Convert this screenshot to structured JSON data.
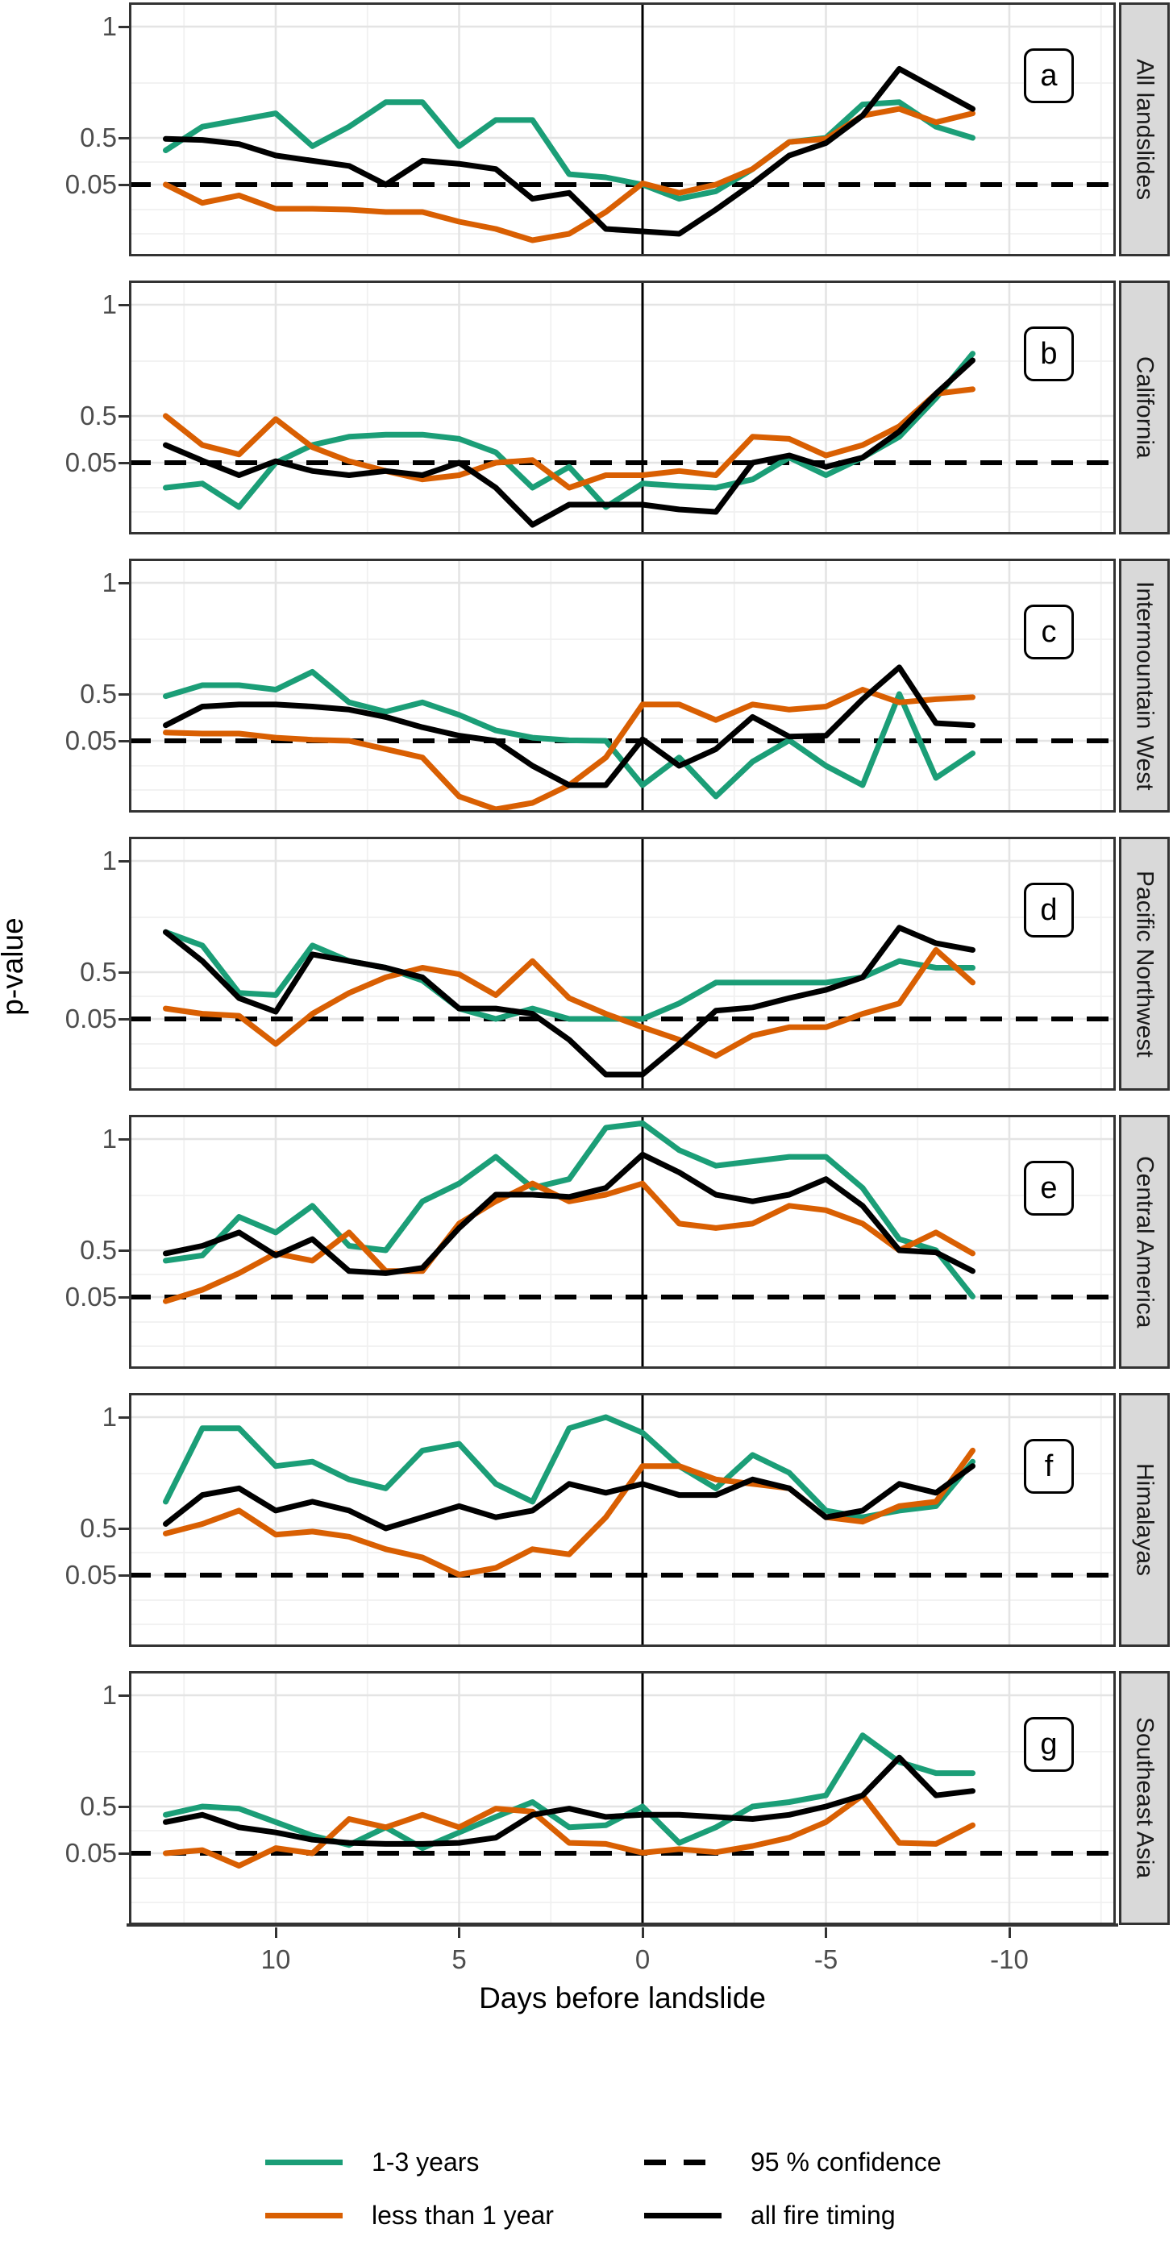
{
  "figure": {
    "ylabel": "p-value",
    "xlabel": "Days before landslide",
    "legend": [
      {
        "label": "1-3 years",
        "color": "#1b9e77",
        "dash": false
      },
      {
        "label": "less than 1 year",
        "color": "#d95f02",
        "dash": false
      },
      {
        "label": "95 % confidence",
        "color": "#000000",
        "dash": true
      },
      {
        "label": "all fire timing",
        "color": "#000000",
        "dash": false
      }
    ]
  },
  "chart_data": {
    "type": "line",
    "title": "",
    "xlabel": "Days before landslide",
    "ylabel": "p-value",
    "legend_position": "bottom",
    "grid": true,
    "x_axis_breaks": [
      10,
      5,
      0,
      -5,
      -10
    ],
    "x_tick_labels": [
      "10",
      "5",
      "0",
      "-5",
      "-10"
    ],
    "y_axis_breaks": [
      1,
      0.5,
      0.05
    ],
    "y_tick_labels": [
      "1",
      "0.5",
      "0.05"
    ],
    "confidence_level_line": 0.05,
    "event_line_x": 0,
    "x": [
      13,
      12,
      11,
      10,
      9,
      8,
      7,
      6,
      5,
      4,
      3,
      2,
      1,
      0,
      -1,
      -2,
      -3,
      -4,
      -5,
      -6,
      -7,
      -8,
      -9
    ],
    "series_colors": {
      "1-3 years": "#1b9e77",
      "less than 1 year": "#d95f02",
      "all fire timing": "#000000",
      "95 % confidence": "#000000"
    },
    "panels": [
      {
        "letter": "a",
        "region": "All landslides",
        "series": {
          "1-3 years": [
            0.38,
            0.55,
            0.58,
            0.61,
            0.42,
            0.55,
            0.66,
            0.66,
            0.42,
            0.58,
            0.58,
            0.15,
            0.12,
            0.05,
            0.033,
            0.042,
            0.2,
            0.46,
            0.5,
            0.65,
            0.66,
            0.55,
            0.5
          ],
          "less than 1 year": [
            0.05,
            0.028,
            0.037,
            0.021,
            0.021,
            0.02,
            0.019,
            0.019,
            0.015,
            0.012,
            0.008,
            0.01,
            0.019,
            0.062,
            0.04,
            0.05,
            0.2,
            0.46,
            0.49,
            0.6,
            0.63,
            0.57,
            0.61
          ],
          "all fire timing": [
            0.49,
            0.48,
            0.44,
            0.33,
            0.28,
            0.23,
            0.05,
            0.28,
            0.25,
            0.2,
            0.033,
            0.04,
            0.012,
            0.011,
            0.01,
            0.02,
            0.06,
            0.33,
            0.45,
            0.6,
            0.81,
            0.72,
            0.63
          ]
        }
      },
      {
        "letter": "b",
        "region": "California",
        "series": {
          "1-3 years": [
            0.02,
            0.025,
            0.012,
            0.05,
            0.22,
            0.3,
            0.32,
            0.32,
            0.28,
            0.15,
            0.02,
            0.045,
            0.012,
            0.025,
            0.022,
            0.02,
            0.03,
            0.1,
            0.035,
            0.1,
            0.3,
            0.58,
            0.78
          ],
          "less than 1 year": [
            0.5,
            0.22,
            0.13,
            0.47,
            0.2,
            0.065,
            0.04,
            0.03,
            0.035,
            0.05,
            0.075,
            0.02,
            0.035,
            0.035,
            0.04,
            0.035,
            0.3,
            0.28,
            0.12,
            0.22,
            0.4,
            0.6,
            0.62
          ],
          "all fire timing": [
            0.22,
            0.07,
            0.035,
            0.065,
            0.04,
            0.035,
            0.04,
            0.035,
            0.05,
            0.02,
            0.006,
            0.013,
            0.013,
            0.013,
            0.011,
            0.01,
            0.05,
            0.12,
            0.045,
            0.1,
            0.35,
            0.6,
            0.75
          ]
        }
      },
      {
        "letter": "c",
        "region": "Intermountain West",
        "series": {
          "1-3 years": [
            0.48,
            0.54,
            0.54,
            0.52,
            0.6,
            0.42,
            0.33,
            0.42,
            0.3,
            0.15,
            0.08,
            0.055,
            0.05,
            0.012,
            0.03,
            0.008,
            0.025,
            0.055,
            0.02,
            0.012,
            0.5,
            0.015,
            0.035
          ],
          "less than 1 year": [
            0.13,
            0.12,
            0.12,
            0.08,
            0.06,
            0.05,
            0.04,
            0.03,
            0.008,
            0.004,
            0.006,
            0.012,
            0.03,
            0.4,
            0.4,
            0.25,
            0.4,
            0.35,
            0.38,
            0.52,
            0.42,
            0.45,
            0.47
          ],
          "all fire timing": [
            0.2,
            0.38,
            0.4,
            0.4,
            0.38,
            0.35,
            0.28,
            0.18,
            0.1,
            0.05,
            0.02,
            0.012,
            0.012,
            0.065,
            0.02,
            0.04,
            0.28,
            0.09,
            0.1,
            0.45,
            0.62,
            0.22,
            0.2
          ]
        }
      },
      {
        "letter": "d",
        "region": "Pacific Northwest",
        "series": {
          "1-3 years": [
            0.68,
            0.62,
            0.3,
            0.28,
            0.62,
            0.55,
            0.52,
            0.42,
            0.15,
            0.05,
            0.15,
            0.05,
            0.05,
            0.05,
            0.2,
            0.4,
            0.4,
            0.4,
            0.4,
            0.45,
            0.55,
            0.52,
            0.52
          ],
          "less than 1 year": [
            0.15,
            0.1,
            0.08,
            0.02,
            0.1,
            0.3,
            0.45,
            0.52,
            0.48,
            0.28,
            0.55,
            0.25,
            0.1,
            0.04,
            0.025,
            0.015,
            0.03,
            0.04,
            0.04,
            0.1,
            0.2,
            0.6,
            0.4
          ],
          "all fire timing": [
            0.68,
            0.55,
            0.25,
            0.12,
            0.58,
            0.55,
            0.52,
            0.45,
            0.15,
            0.15,
            0.1,
            0.025,
            0.008,
            0.008,
            0.02,
            0.13,
            0.16,
            0.25,
            0.33,
            0.45,
            0.7,
            0.63,
            0.6
          ]
        }
      },
      {
        "letter": "e",
        "region": "Central America",
        "series": {
          "1-3 years": [
            0.4,
            0.45,
            0.65,
            0.58,
            0.7,
            0.52,
            0.5,
            0.72,
            0.8,
            0.92,
            0.78,
            0.82,
            1.05,
            1.07,
            0.95,
            0.88,
            0.9,
            0.92,
            0.92,
            0.78,
            0.55,
            0.5,
            0.055
          ],
          "less than 1 year": [
            0.045,
            0.12,
            0.28,
            0.47,
            0.4,
            0.58,
            0.3,
            0.3,
            0.62,
            0.72,
            0.8,
            0.72,
            0.75,
            0.8,
            0.62,
            0.6,
            0.62,
            0.7,
            0.68,
            0.62,
            0.5,
            0.58,
            0.47
          ],
          "all fire timing": [
            0.47,
            0.52,
            0.58,
            0.45,
            0.55,
            0.3,
            0.28,
            0.33,
            0.6,
            0.75,
            0.75,
            0.74,
            0.78,
            0.93,
            0.85,
            0.75,
            0.72,
            0.75,
            0.82,
            0.7,
            0.5,
            0.48,
            0.3
          ]
        }
      },
      {
        "letter": "f",
        "region": "Himalayas",
        "series": {
          "1-3 years": [
            0.62,
            0.95,
            0.95,
            0.78,
            0.8,
            0.72,
            0.68,
            0.85,
            0.88,
            0.7,
            0.62,
            0.95,
            1.0,
            0.93,
            0.78,
            0.68,
            0.83,
            0.75,
            0.58,
            0.55,
            0.58,
            0.6,
            0.8
          ],
          "less than 1 year": [
            0.45,
            0.52,
            0.58,
            0.44,
            0.47,
            0.42,
            0.3,
            0.22,
            0.055,
            0.12,
            0.3,
            0.25,
            0.55,
            0.78,
            0.78,
            0.72,
            0.7,
            0.68,
            0.55,
            0.53,
            0.6,
            0.62,
            0.85
          ],
          "all fire timing": [
            0.52,
            0.65,
            0.68,
            0.58,
            0.62,
            0.58,
            0.5,
            0.55,
            0.6,
            0.55,
            0.58,
            0.7,
            0.66,
            0.7,
            0.65,
            0.65,
            0.72,
            0.68,
            0.55,
            0.58,
            0.7,
            0.66,
            0.78
          ]
        }
      },
      {
        "letter": "g",
        "region": "Southeast Asia",
        "series": {
          "1-3 years": [
            0.42,
            0.5,
            0.48,
            0.35,
            0.22,
            0.13,
            0.3,
            0.1,
            0.25,
            0.4,
            0.52,
            0.3,
            0.32,
            0.5,
            0.15,
            0.3,
            0.5,
            0.52,
            0.55,
            0.82,
            0.7,
            0.65,
            0.65
          ],
          "less than 1 year": [
            0.05,
            0.08,
            0.035,
            0.1,
            0.05,
            0.38,
            0.3,
            0.42,
            0.3,
            0.48,
            0.45,
            0.15,
            0.14,
            0.055,
            0.09,
            0.06,
            0.12,
            0.2,
            0.35,
            0.55,
            0.15,
            0.14,
            0.32
          ],
          "all fire timing": [
            0.35,
            0.42,
            0.3,
            0.25,
            0.18,
            0.15,
            0.14,
            0.14,
            0.15,
            0.2,
            0.42,
            0.48,
            0.4,
            0.42,
            0.42,
            0.4,
            0.38,
            0.42,
            0.5,
            0.55,
            0.72,
            0.55,
            0.57
          ]
        }
      }
    ]
  }
}
